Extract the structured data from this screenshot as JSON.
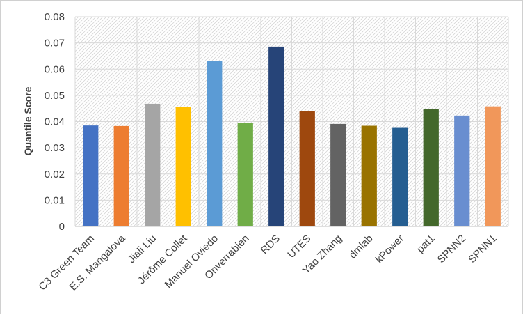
{
  "chart_data": {
    "type": "bar",
    "title": "",
    "xlabel": "",
    "ylabel": "Quantile Score",
    "ylim": [
      0,
      0.08
    ],
    "yticks": [
      0,
      0.01,
      0.02,
      0.03,
      0.04,
      0.05,
      0.06,
      0.07,
      0.08
    ],
    "ytick_labels": [
      "0",
      "0.01",
      "0.02",
      "0.03",
      "0.04",
      "0.05",
      "0.06",
      "0.07",
      "0.08"
    ],
    "grid": true,
    "legend": "none",
    "categories": [
      "C3 Green Team",
      "E.S. Mangalova",
      "Jiali Liu",
      "Jérôme Collet",
      "Manuel Oviedo",
      "Onverrabien",
      "RDS",
      "UTES",
      "Yao Zhang",
      "dmlab",
      "kPower",
      "pat1",
      "SPNN2",
      "SPNN1"
    ],
    "values": [
      0.0385,
      0.0383,
      0.0468,
      0.0455,
      0.063,
      0.0394,
      0.0686,
      0.0441,
      0.0391,
      0.0384,
      0.0376,
      0.0448,
      0.0423,
      0.0458
    ],
    "colors": [
      "#4472c4",
      "#ed7d31",
      "#a5a5a5",
      "#ffc000",
      "#5b9bd5",
      "#70ad47",
      "#264478",
      "#9e480e",
      "#636363",
      "#997300",
      "#255e91",
      "#43682b",
      "#698ed0",
      "#f1975a"
    ]
  }
}
